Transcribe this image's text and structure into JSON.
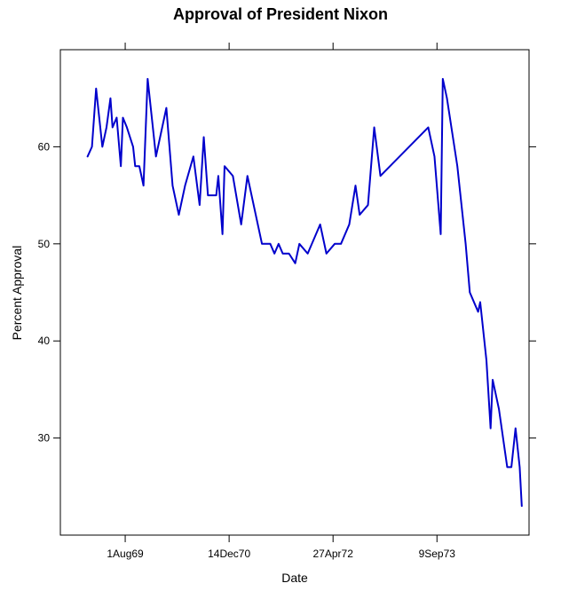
{
  "chart_data": {
    "type": "line",
    "title": "Approval of President Nixon",
    "xlabel": "Date",
    "ylabel": "Percent Approval",
    "x_ticks": [
      "1Aug69",
      "14Dec70",
      "27Apr72",
      "9Sep73"
    ],
    "y_ticks": [
      30,
      40,
      50,
      60
    ],
    "xlim": [
      "1968-09-23",
      "1974-11-26"
    ],
    "ylim": [
      20,
      70
    ],
    "grid": false,
    "legend": "none",
    "line_color": "#0000cc",
    "series": [
      {
        "points": [
          [
            "1969-02-01",
            59
          ],
          [
            "1969-02-22",
            60
          ],
          [
            "1969-03-14",
            66
          ],
          [
            "1969-04-03",
            62
          ],
          [
            "1969-04-13",
            60
          ],
          [
            "1969-05-03",
            62
          ],
          [
            "1969-05-22",
            65
          ],
          [
            "1969-06-01",
            62
          ],
          [
            "1969-06-21",
            63
          ],
          [
            "1969-07-11",
            58
          ],
          [
            "1969-07-21",
            63
          ],
          [
            "1969-08-09",
            62
          ],
          [
            "1969-09-08",
            60
          ],
          [
            "1969-09-18",
            58
          ],
          [
            "1969-10-08",
            58
          ],
          [
            "1969-10-28",
            56
          ],
          [
            "1969-11-17",
            67
          ],
          [
            "1969-12-27",
            59
          ],
          [
            "1970-01-26",
            62
          ],
          [
            "1970-02-15",
            64
          ],
          [
            "1970-03-17",
            56
          ],
          [
            "1970-04-16",
            53
          ],
          [
            "1970-05-16",
            56
          ],
          [
            "1970-06-25",
            59
          ],
          [
            "1970-07-25",
            54
          ],
          [
            "1970-08-14",
            61
          ],
          [
            "1970-09-03",
            55
          ],
          [
            "1970-10-13",
            55
          ],
          [
            "1970-10-23",
            57
          ],
          [
            "1970-11-12",
            51
          ],
          [
            "1970-11-22",
            58
          ],
          [
            "1971-01-01",
            57
          ],
          [
            "1971-02-10",
            52
          ],
          [
            "1971-03-12",
            57
          ],
          [
            "1971-05-21",
            50
          ],
          [
            "1971-06-30",
            50
          ],
          [
            "1971-07-20",
            49
          ],
          [
            "1971-08-09",
            50
          ],
          [
            "1971-08-29",
            49
          ],
          [
            "1971-09-28",
            49
          ],
          [
            "1971-10-28",
            48
          ],
          [
            "1971-11-17",
            50
          ],
          [
            "1971-12-27",
            49
          ],
          [
            "1972-02-05",
            51
          ],
          [
            "1972-02-25",
            52
          ],
          [
            "1972-03-26",
            49
          ],
          [
            "1972-05-05",
            50
          ],
          [
            "1972-06-04",
            50
          ],
          [
            "1972-07-14",
            52
          ],
          [
            "1972-08-13",
            56
          ],
          [
            "1972-09-02",
            53
          ],
          [
            "1972-10-12",
            54
          ],
          [
            "1972-11-11",
            62
          ],
          [
            "1972-12-11",
            57
          ],
          [
            "1973-07-29",
            62
          ],
          [
            "1973-08-28",
            59
          ],
          [
            "1973-09-27",
            51
          ],
          [
            "1973-10-07",
            67
          ],
          [
            "1973-10-27",
            65
          ],
          [
            "1973-12-16",
            58
          ],
          [
            "1974-01-25",
            50
          ],
          [
            "1974-02-14",
            45
          ],
          [
            "1974-03-06",
            44
          ],
          [
            "1974-03-26",
            43
          ],
          [
            "1974-04-05",
            44
          ],
          [
            "1974-05-05",
            38
          ],
          [
            "1974-05-25",
            31
          ],
          [
            "1974-06-04",
            36
          ],
          [
            "1974-07-04",
            33
          ],
          [
            "1974-07-24",
            30
          ],
          [
            "1974-08-13",
            27
          ],
          [
            "1974-09-02",
            27
          ],
          [
            "1974-09-22",
            31
          ],
          [
            "1974-10-12",
            27
          ],
          [
            "1974-10-22",
            23
          ]
        ]
      }
    ]
  }
}
